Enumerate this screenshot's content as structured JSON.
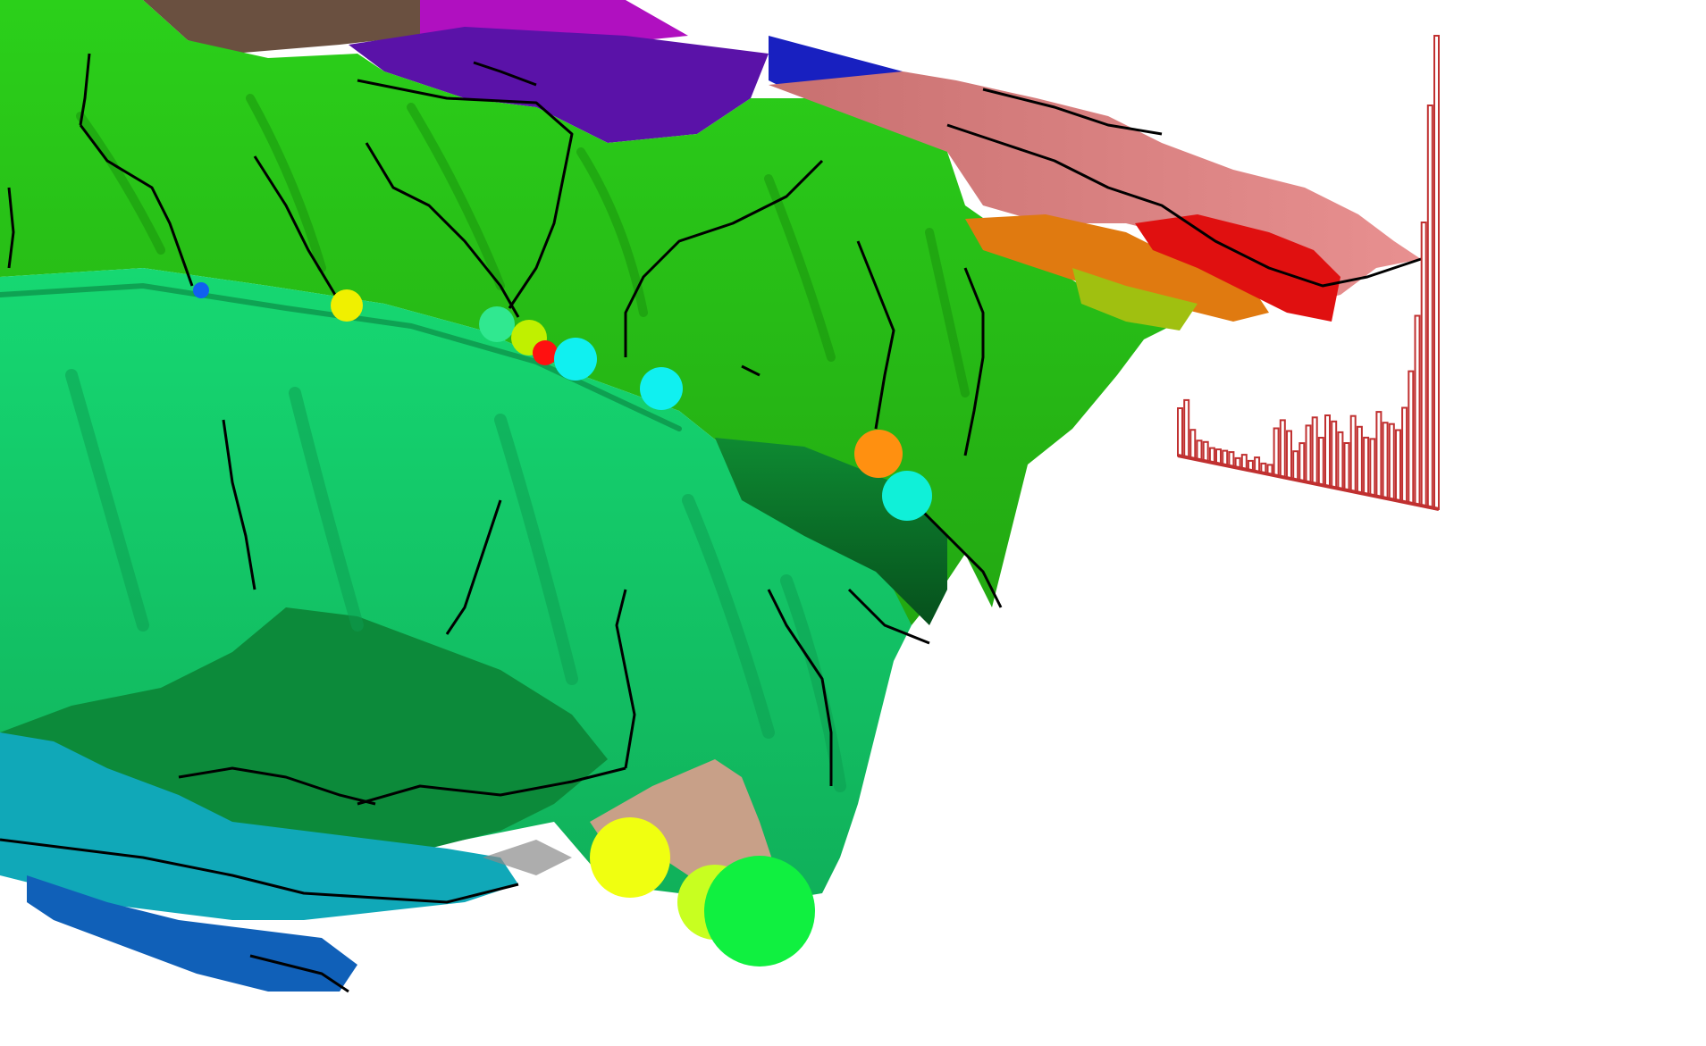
{
  "viewport": {
    "background": "#ffffff",
    "caption": ""
  },
  "colors": {
    "upper_terrain": "#2fce1a",
    "upper_terrain_dark": "#1b9a10",
    "lower_terrain": "#17d070",
    "lower_terrain_dark": "#0e9a50",
    "ridge_block": "#0d7a2a",
    "ridge_block_dark": "#064a18",
    "purple_region": "#5a10a8",
    "magenta_region": "#c010c8",
    "blue_region": "#1020c8",
    "pink_region": "#d88080",
    "red_region": "#e01010",
    "orange_region": "#e08010",
    "tan_region": "#c8a088",
    "brown_region": "#6a5040",
    "cyan_region": "#10a8b8",
    "deep_blue_region": "#1060b8",
    "river_lines": "#000000",
    "histogram": "#c03030"
  },
  "histogram": {
    "title": "",
    "bar_heights_relative": [
      0.1,
      0.12,
      0.06,
      0.04,
      0.04,
      0.03,
      0.03,
      0.03,
      0.03,
      0.02,
      0.03,
      0.02,
      0.03,
      0.02,
      0.02,
      0.1,
      0.12,
      0.1,
      0.06,
      0.08,
      0.12,
      0.14,
      0.1,
      0.15,
      0.14,
      0.12,
      0.1,
      0.16,
      0.14,
      0.12,
      0.12,
      0.18,
      0.16,
      0.16,
      0.15,
      0.2,
      0.28,
      0.4,
      0.6,
      0.85,
      1.0
    ]
  },
  "markers": [
    {
      "name": "outlet-marker-1",
      "color": "#f0f000"
    },
    {
      "name": "outlet-marker-2",
      "color": "#30e890"
    },
    {
      "name": "outlet-marker-3",
      "color": "#c0f000"
    },
    {
      "name": "outlet-marker-4",
      "color": "#ff1010"
    },
    {
      "name": "outlet-marker-5",
      "color": "#10f0f0"
    },
    {
      "name": "outlet-marker-6",
      "color": "#10f0f0"
    },
    {
      "name": "outlet-marker-7",
      "color": "#ff9010"
    },
    {
      "name": "outlet-marker-8",
      "color": "#10f0d8"
    },
    {
      "name": "outlet-marker-9",
      "color": "#f0ff10"
    },
    {
      "name": "outlet-marker-10",
      "color": "#c8ff20"
    },
    {
      "name": "outlet-marker-11",
      "color": "#10f040"
    },
    {
      "name": "outlet-marker-12",
      "color": "#1060f0"
    }
  ]
}
